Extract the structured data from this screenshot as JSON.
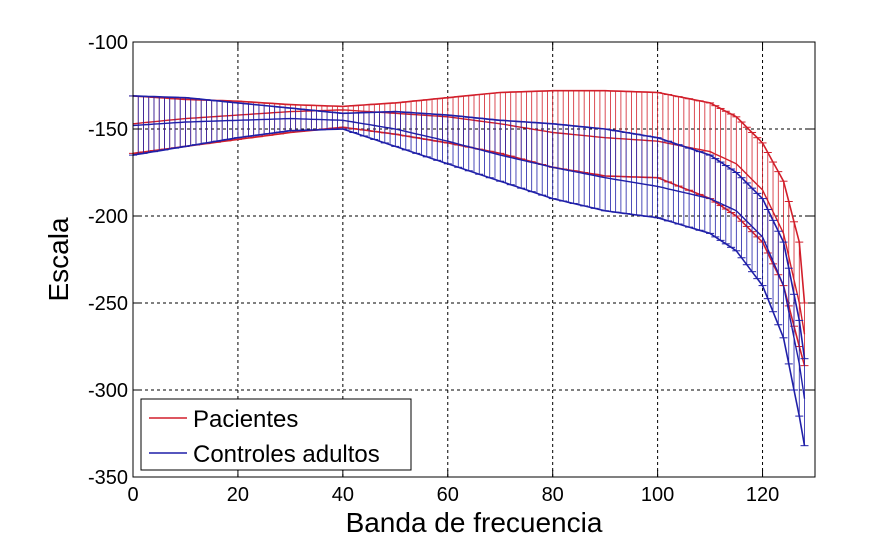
{
  "chart_data": {
    "type": "line",
    "title": "",
    "xlabel": "Banda de frecuencia",
    "ylabel": "Escala",
    "xlim": [
      0,
      130
    ],
    "ylim": [
      -350,
      -100
    ],
    "xticks": [
      0,
      20,
      40,
      60,
      80,
      100,
      120
    ],
    "yticks": [
      -100,
      -150,
      -200,
      -250,
      -300,
      -350
    ],
    "grid": true,
    "legend": {
      "position": "bottom-left",
      "entries": [
        "Pacientes",
        "Controles adultos"
      ]
    },
    "colors": {
      "Pacientes": "#d21f2b",
      "Controles adultos": "#1f1fa8"
    },
    "series": [
      {
        "name": "Pacientes",
        "x": [
          0,
          10,
          20,
          30,
          40,
          50,
          60,
          70,
          80,
          90,
          100,
          110,
          115,
          120,
          124,
          127,
          128
        ],
        "mean": [
          -147,
          -144,
          -142,
          -140,
          -139,
          -141,
          -143,
          -147,
          -152,
          -155,
          -157,
          -163,
          -170,
          -185,
          -210,
          -250,
          -268
        ],
        "lower": [
          -164,
          -160,
          -156,
          -152,
          -149,
          -153,
          -158,
          -164,
          -172,
          -177,
          -178,
          -190,
          -200,
          -215,
          -240,
          -275,
          -286
        ],
        "upper": [
          -131,
          -133,
          -134,
          -136,
          -137,
          -135,
          -132,
          -129,
          -128,
          -128,
          -129,
          -135,
          -143,
          -158,
          -180,
          -215,
          -250
        ]
      },
      {
        "name": "Controles adultos",
        "x": [
          0,
          10,
          20,
          30,
          40,
          50,
          60,
          70,
          80,
          90,
          100,
          110,
          115,
          120,
          124,
          127,
          128
        ],
        "mean": [
          -148,
          -146,
          -145,
          -144,
          -145,
          -150,
          -157,
          -165,
          -172,
          -178,
          -183,
          -190,
          -197,
          -212,
          -240,
          -285,
          -305
        ],
        "lower": [
          -165,
          -160,
          -155,
          -151,
          -150,
          -160,
          -170,
          -180,
          -190,
          -197,
          -201,
          -210,
          -220,
          -240,
          -270,
          -315,
          -332
        ],
        "upper": [
          -131,
          -132,
          -135,
          -138,
          -141,
          -140,
          -142,
          -145,
          -147,
          -150,
          -155,
          -165,
          -175,
          -190,
          -215,
          -260,
          -282
        ]
      }
    ]
  }
}
